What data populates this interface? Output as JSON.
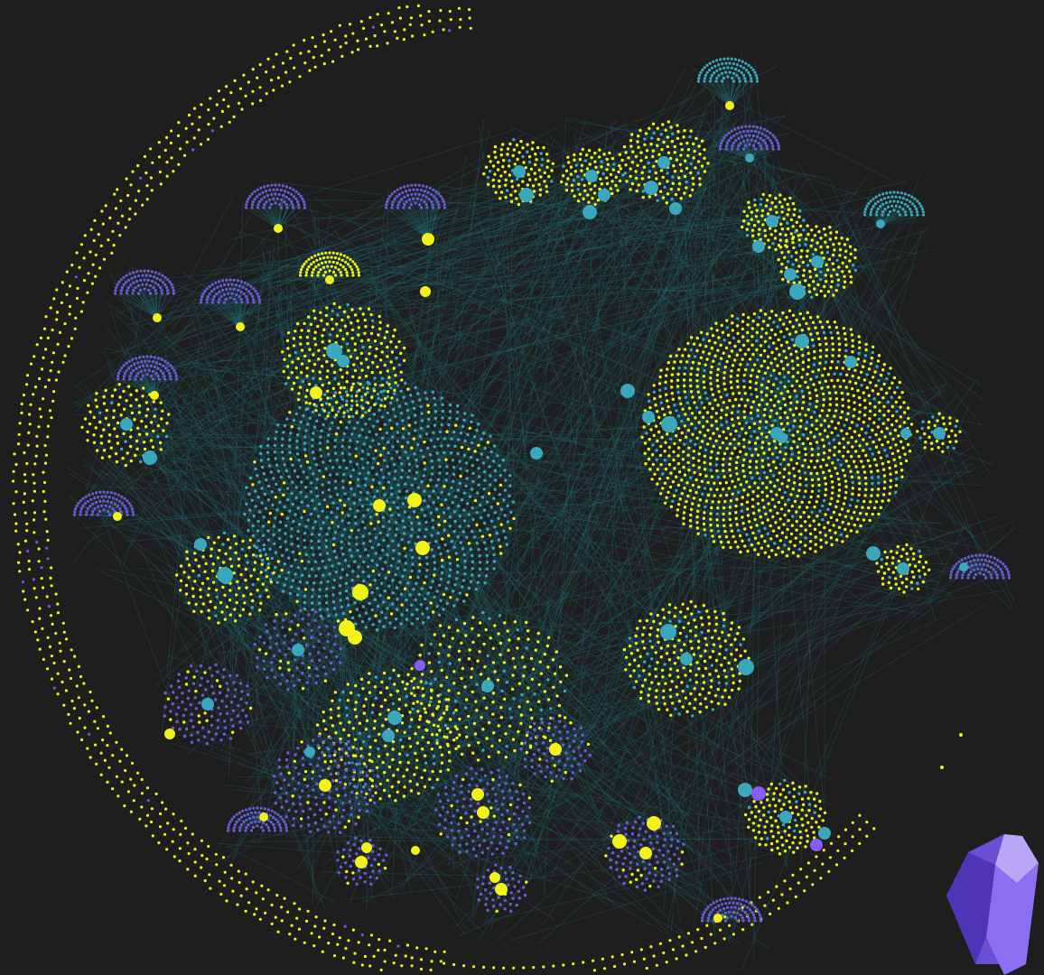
{
  "app": {
    "view": "graph",
    "logo_icon": "obsidian-crystal-icon"
  },
  "colors": {
    "background": "#1e1e1e",
    "link": "#1f6f78",
    "note_node": "#f2f21a",
    "tag_node": "#3ba7bd",
    "attachment_node": "#6b5bd6",
    "hub_purple": "#8a5cf5",
    "logo_light": "#a58bf2",
    "logo_mid": "#7b5ce0",
    "logo_dark": "#3b2a9a"
  },
  "icons": {
    "logo": "obsidian-crystal-icon"
  }
}
